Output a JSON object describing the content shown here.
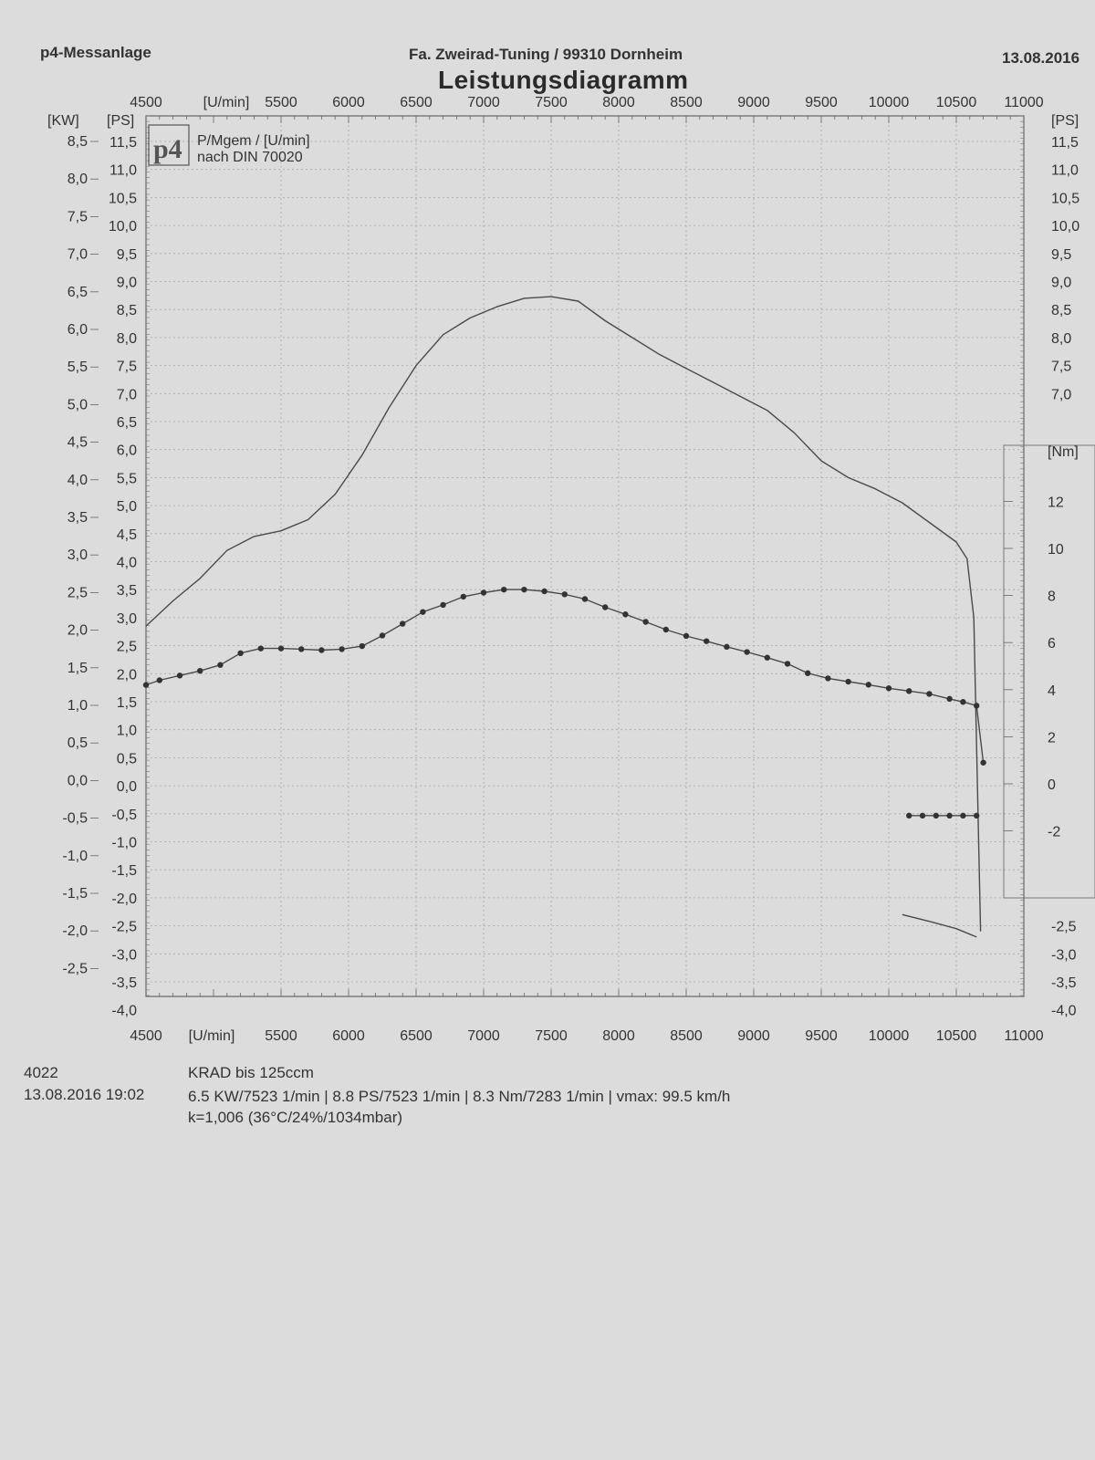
{
  "header": {
    "left": "p4-Messanlage",
    "center": "Fa. Zweirad-Tuning / 99310 Dornheim",
    "right": "13.08.2016",
    "title": "Leistungsdiagramm"
  },
  "legend_box": {
    "logo": "p4",
    "line1": "P/Mgem / [U/min]",
    "line2": "nach DIN 70020"
  },
  "footer": {
    "code": "4022",
    "vehicle_class": "KRAD bis   125ccm",
    "date_time": "13.08.2016   19:02",
    "stats": "6.5 KW/7523 1/min  |  8.8 PS/7523 1/min  |  8.3 Nm/7283 1/min | vmax: 99.5 km/h",
    "correction": "k=1,006 (36°C/24%/1034mbar)"
  },
  "colors": {
    "paper": "#dcdcdc",
    "ink": "#4a4a4a",
    "grid": "#a8a8a8"
  },
  "chart_data": {
    "type": "line",
    "x_unit_label": "[U/min]",
    "xlim": [
      4500,
      11000
    ],
    "x_ticks": [
      4500,
      5500,
      6000,
      6500,
      7000,
      7500,
      8000,
      8500,
      9000,
      9500,
      10000,
      10500,
      11000
    ],
    "axes": {
      "kw": {
        "label": "[KW]",
        "range": [
          -3.0,
          8.5
        ],
        "ticks": [
          "8,5",
          "8,0",
          "7,5",
          "7,0",
          "6,5",
          "6,0",
          "5,5",
          "5,0",
          "4,5",
          "4,0",
          "3,5",
          "3,0",
          "2,5",
          "2,0",
          "1,5",
          "1,0",
          "0,5",
          "0,0",
          "-0,5",
          "-1,0",
          "-1,5",
          "-2,0",
          "-2,5"
        ]
      },
      "ps_left": {
        "label": "[PS]",
        "range": [
          -4.0,
          11.5
        ],
        "ticks": [
          "11,5",
          "11,0",
          "10,5",
          "10,0",
          "9,5",
          "9,0",
          "8,5",
          "8,0",
          "7,5",
          "7,0",
          "6,5",
          "6,0",
          "5,5",
          "5,0",
          "4,5",
          "4,0",
          "3,5",
          "3,0",
          "2,5",
          "2,0",
          "1,5",
          "1,0",
          "0,5",
          "0,0",
          "-0,5",
          "-1,0",
          "-1,5",
          "-2,0",
          "-2,5",
          "-3,0",
          "-3,5",
          "-4,0"
        ]
      },
      "ps_right": {
        "label": "[PS]",
        "ticks_upper": [
          "11,5",
          "11,0",
          "10,5",
          "10,0",
          "9,5",
          "9,0",
          "8,5",
          "8,0",
          "7,5",
          "7,0"
        ],
        "ticks_lower": [
          "-2,5",
          "-3,0",
          "-3,5",
          "-4,0"
        ]
      },
      "nm": {
        "label": "[Nm]",
        "range": [
          -4,
          14
        ],
        "ticks": [
          "12",
          "10",
          "8",
          "6",
          "4",
          "2",
          "0",
          "-2"
        ]
      }
    },
    "series": [
      {
        "unit": "PS",
        "style": "line",
        "x": [
          4500,
          4700,
          4900,
          5100,
          5300,
          5500,
          5700,
          5900,
          6100,
          6300,
          6500,
          6700,
          6900,
          7100,
          7300,
          7500,
          7700,
          7900,
          8100,
          8300,
          8500,
          8700,
          8900,
          9100,
          9300,
          9500,
          9700,
          9900,
          10100,
          10300,
          10500,
          10580,
          10630,
          10680
        ],
        "y": [
          2.85,
          3.3,
          3.7,
          4.2,
          4.45,
          4.55,
          4.75,
          5.2,
          5.9,
          6.75,
          7.5,
          8.05,
          8.35,
          8.55,
          8.7,
          8.73,
          8.65,
          8.3,
          8.0,
          7.7,
          7.45,
          7.2,
          6.95,
          6.7,
          6.3,
          5.8,
          5.5,
          5.3,
          5.05,
          4.7,
          4.35,
          4.05,
          3.0,
          -2.6
        ]
      },
      {
        "unit": "Nm",
        "style": "line-with-dots",
        "x": [
          4500,
          4600,
          4750,
          4900,
          5050,
          5200,
          5350,
          5500,
          5650,
          5800,
          5950,
          6100,
          6250,
          6400,
          6550,
          6700,
          6850,
          7000,
          7150,
          7300,
          7450,
          7600,
          7750,
          7900,
          8050,
          8200,
          8350,
          8500,
          8650,
          8800,
          8950,
          9100,
          9250,
          9400,
          9550,
          9700,
          9850,
          10000,
          10150,
          10300,
          10450,
          10550,
          10650,
          10700
        ],
        "y": [
          4.2,
          4.4,
          4.6,
          4.8,
          5.05,
          5.55,
          5.75,
          5.75,
          5.72,
          5.68,
          5.72,
          5.85,
          6.3,
          6.8,
          7.3,
          7.6,
          7.95,
          8.12,
          8.25,
          8.25,
          8.18,
          8.05,
          7.85,
          7.5,
          7.2,
          6.88,
          6.55,
          6.28,
          6.06,
          5.82,
          5.6,
          5.36,
          5.1,
          4.7,
          4.48,
          4.34,
          4.21,
          4.06,
          3.94,
          3.82,
          3.61,
          3.48,
          3.32,
          0.9
        ]
      },
      {
        "unit": "PS",
        "style": "line",
        "x": [
          10100,
          10300,
          10500,
          10650
        ],
        "y": [
          -2.3,
          -2.42,
          -2.55,
          -2.7
        ]
      },
      {
        "unit": "Nm",
        "style": "line-with-dots",
        "x": [
          10150,
          10250,
          10350,
          10450,
          10550,
          10650
        ],
        "y": [
          -1.35,
          -1.35,
          -1.35,
          -1.35,
          -1.35,
          -1.35
        ]
      }
    ]
  }
}
